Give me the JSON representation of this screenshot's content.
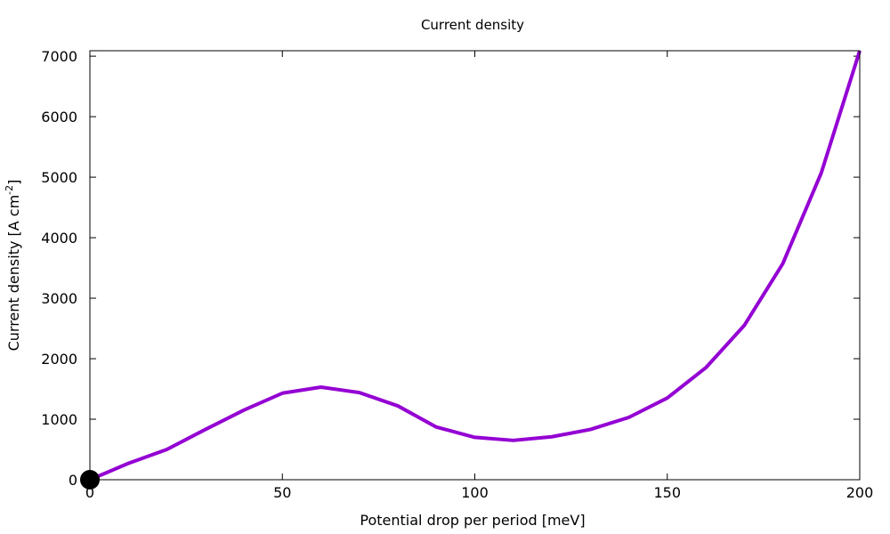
{
  "chart_data": {
    "type": "line",
    "title": "Current density",
    "xlabel": "Potential drop per period [meV]",
    "ylabel": {
      "text": "Current density [A cm",
      "superscript": "-2",
      "suffix": "]"
    },
    "xlim": [
      0,
      200
    ],
    "ylim": [
      0,
      7090
    ],
    "xticks": [
      0,
      50,
      100,
      150,
      200
    ],
    "yticks": [
      0,
      1000,
      2000,
      3000,
      4000,
      5000,
      6000,
      7000
    ],
    "grid": false,
    "legend": "none",
    "series": [
      {
        "color": "#9400d3",
        "x": [
          0,
          10,
          20,
          30,
          40,
          50,
          60,
          70,
          80,
          90,
          100,
          110,
          120,
          130,
          140,
          150,
          160,
          170,
          180,
          190,
          200
        ],
        "y": [
          0,
          270,
          500,
          830,
          1150,
          1430,
          1530,
          1440,
          1220,
          870,
          700,
          650,
          710,
          830,
          1030,
          1350,
          1850,
          2550,
          3570,
          5070,
          7090
        ]
      }
    ],
    "marker": {
      "x": 0,
      "y": 0,
      "color": "#000000",
      "shape": "filled-circle"
    }
  }
}
